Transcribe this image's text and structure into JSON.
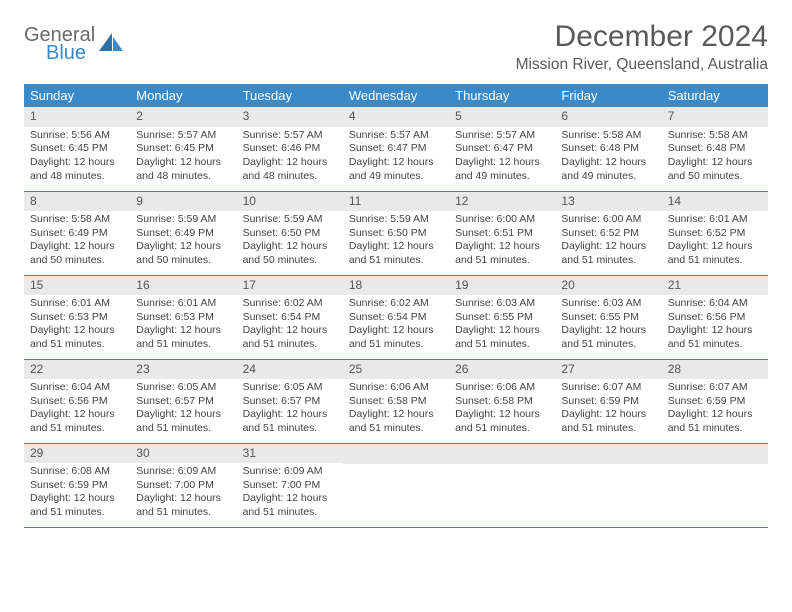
{
  "logo": {
    "general": "General",
    "blue": "Blue"
  },
  "title": "December 2024",
  "location": "Mission River, Queensland, Australia",
  "day_headers": [
    "Sunday",
    "Monday",
    "Tuesday",
    "Wednesday",
    "Thursday",
    "Friday",
    "Saturday"
  ],
  "colors": {
    "header_bg": "#3a8ac9",
    "header_text": "#ffffff",
    "daynum_bg": "#e9e9e9",
    "rule": "#3a8ac9",
    "logo_gray": "#6b6b6b",
    "logo_blue": "#3a8ac9"
  },
  "rows": [
    [
      {
        "n": "1",
        "sr": "5:56 AM",
        "ss": "6:45 PM",
        "dl": "12 hours and 48 minutes."
      },
      {
        "n": "2",
        "sr": "5:57 AM",
        "ss": "6:45 PM",
        "dl": "12 hours and 48 minutes."
      },
      {
        "n": "3",
        "sr": "5:57 AM",
        "ss": "6:46 PM",
        "dl": "12 hours and 48 minutes."
      },
      {
        "n": "4",
        "sr": "5:57 AM",
        "ss": "6:47 PM",
        "dl": "12 hours and 49 minutes."
      },
      {
        "n": "5",
        "sr": "5:57 AM",
        "ss": "6:47 PM",
        "dl": "12 hours and 49 minutes."
      },
      {
        "n": "6",
        "sr": "5:58 AM",
        "ss": "6:48 PM",
        "dl": "12 hours and 49 minutes."
      },
      {
        "n": "7",
        "sr": "5:58 AM",
        "ss": "6:48 PM",
        "dl": "12 hours and 50 minutes."
      }
    ],
    [
      {
        "n": "8",
        "sr": "5:58 AM",
        "ss": "6:49 PM",
        "dl": "12 hours and 50 minutes."
      },
      {
        "n": "9",
        "sr": "5:59 AM",
        "ss": "6:49 PM",
        "dl": "12 hours and 50 minutes."
      },
      {
        "n": "10",
        "sr": "5:59 AM",
        "ss": "6:50 PM",
        "dl": "12 hours and 50 minutes."
      },
      {
        "n": "11",
        "sr": "5:59 AM",
        "ss": "6:50 PM",
        "dl": "12 hours and 51 minutes."
      },
      {
        "n": "12",
        "sr": "6:00 AM",
        "ss": "6:51 PM",
        "dl": "12 hours and 51 minutes."
      },
      {
        "n": "13",
        "sr": "6:00 AM",
        "ss": "6:52 PM",
        "dl": "12 hours and 51 minutes."
      },
      {
        "n": "14",
        "sr": "6:01 AM",
        "ss": "6:52 PM",
        "dl": "12 hours and 51 minutes."
      }
    ],
    [
      {
        "n": "15",
        "sr": "6:01 AM",
        "ss": "6:53 PM",
        "dl": "12 hours and 51 minutes."
      },
      {
        "n": "16",
        "sr": "6:01 AM",
        "ss": "6:53 PM",
        "dl": "12 hours and 51 minutes."
      },
      {
        "n": "17",
        "sr": "6:02 AM",
        "ss": "6:54 PM",
        "dl": "12 hours and 51 minutes."
      },
      {
        "n": "18",
        "sr": "6:02 AM",
        "ss": "6:54 PM",
        "dl": "12 hours and 51 minutes."
      },
      {
        "n": "19",
        "sr": "6:03 AM",
        "ss": "6:55 PM",
        "dl": "12 hours and 51 minutes."
      },
      {
        "n": "20",
        "sr": "6:03 AM",
        "ss": "6:55 PM",
        "dl": "12 hours and 51 minutes."
      },
      {
        "n": "21",
        "sr": "6:04 AM",
        "ss": "6:56 PM",
        "dl": "12 hours and 51 minutes."
      }
    ],
    [
      {
        "n": "22",
        "sr": "6:04 AM",
        "ss": "6:56 PM",
        "dl": "12 hours and 51 minutes."
      },
      {
        "n": "23",
        "sr": "6:05 AM",
        "ss": "6:57 PM",
        "dl": "12 hours and 51 minutes."
      },
      {
        "n": "24",
        "sr": "6:05 AM",
        "ss": "6:57 PM",
        "dl": "12 hours and 51 minutes."
      },
      {
        "n": "25",
        "sr": "6:06 AM",
        "ss": "6:58 PM",
        "dl": "12 hours and 51 minutes."
      },
      {
        "n": "26",
        "sr": "6:06 AM",
        "ss": "6:58 PM",
        "dl": "12 hours and 51 minutes."
      },
      {
        "n": "27",
        "sr": "6:07 AM",
        "ss": "6:59 PM",
        "dl": "12 hours and 51 minutes."
      },
      {
        "n": "28",
        "sr": "6:07 AM",
        "ss": "6:59 PM",
        "dl": "12 hours and 51 minutes."
      }
    ],
    [
      {
        "n": "29",
        "sr": "6:08 AM",
        "ss": "6:59 PM",
        "dl": "12 hours and 51 minutes."
      },
      {
        "n": "30",
        "sr": "6:09 AM",
        "ss": "7:00 PM",
        "dl": "12 hours and 51 minutes."
      },
      {
        "n": "31",
        "sr": "6:09 AM",
        "ss": "7:00 PM",
        "dl": "12 hours and 51 minutes."
      },
      {
        "empty": true
      },
      {
        "empty": true
      },
      {
        "empty": true
      },
      {
        "empty": true
      }
    ]
  ],
  "labels": {
    "sunrise": "Sunrise:",
    "sunset": "Sunset:",
    "daylight": "Daylight:"
  }
}
